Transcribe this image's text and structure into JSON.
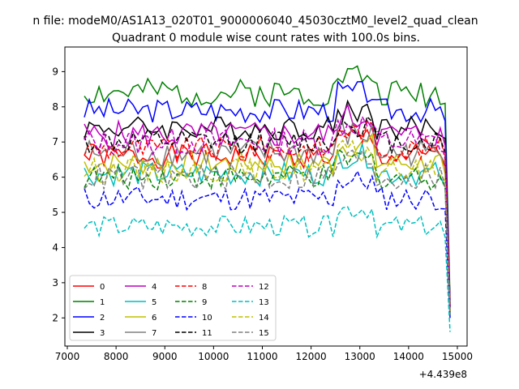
{
  "chart_data": {
    "type": "line",
    "suptitle": "n file: modeM0/AS1A13_020T01_9000006040_45030cztM0_level2_quad_clean",
    "title": "Quadrant 0 module wise count rates with 100.0s bins.",
    "xlabel": "",
    "ylabel": "",
    "x_offset_label": "+4.439e8",
    "xlim": [
      6950,
      15200
    ],
    "ylim": [
      1.2,
      9.7
    ],
    "xticks": [
      7000,
      8000,
      9000,
      10000,
      11000,
      12000,
      13000,
      14000,
      15000
    ],
    "yticks": [
      2,
      3,
      4,
      5,
      6,
      7,
      8,
      9
    ],
    "x_start": 7350,
    "x_step": 100,
    "x_end_points": [
      14750,
      14850
    ],
    "grid": false,
    "legend_position": "lower-left",
    "series": [
      {
        "name": "0",
        "color": "#ff0000",
        "dash": "solid",
        "base": 6.6,
        "amp": 0.35,
        "end": 2.2,
        "seed": 1
      },
      {
        "name": "1",
        "color": "#008000",
        "dash": "solid",
        "base": 8.4,
        "amp": 0.4,
        "end": 2.5,
        "seed": 2
      },
      {
        "name": "2",
        "color": "#0000ff",
        "dash": "solid",
        "base": 7.9,
        "amp": 0.35,
        "end": 2.3,
        "seed": 3
      },
      {
        "name": "3",
        "color": "#000000",
        "dash": "solid",
        "base": 7.4,
        "amp": 0.35,
        "end": 2.4,
        "seed": 4
      },
      {
        "name": "4",
        "color": "#bf00bf",
        "dash": "solid",
        "base": 7.2,
        "amp": 0.4,
        "end": 2.3,
        "seed": 5
      },
      {
        "name": "5",
        "color": "#00bfbf",
        "dash": "solid",
        "base": 6.1,
        "amp": 0.35,
        "end": 2.1,
        "seed": 6
      },
      {
        "name": "6",
        "color": "#bfbf00",
        "dash": "solid",
        "base": 6.4,
        "amp": 0.35,
        "end": 2.2,
        "seed": 7
      },
      {
        "name": "7",
        "color": "#808080",
        "dash": "solid",
        "base": 6.7,
        "amp": 0.4,
        "end": 2.2,
        "seed": 8
      },
      {
        "name": "8",
        "color": "#ff0000",
        "dash": "dashed",
        "base": 6.8,
        "amp": 0.35,
        "end": 2.3,
        "seed": 9
      },
      {
        "name": "9",
        "color": "#008000",
        "dash": "dashed",
        "base": 6.0,
        "amp": 0.35,
        "end": 2.1,
        "seed": 10
      },
      {
        "name": "10",
        "color": "#0000ff",
        "dash": "dashed",
        "base": 5.4,
        "amp": 0.35,
        "end": 2.0,
        "seed": 11
      },
      {
        "name": "11",
        "color": "#000000",
        "dash": "dashed",
        "base": 7.0,
        "amp": 0.35,
        "end": 2.3,
        "seed": 12
      },
      {
        "name": "12",
        "color": "#bf00bf",
        "dash": "dashed",
        "base": 7.0,
        "amp": 0.4,
        "end": 2.3,
        "seed": 13
      },
      {
        "name": "13",
        "color": "#00bfbf",
        "dash": "dashed",
        "base": 4.6,
        "amp": 0.3,
        "end": 1.6,
        "seed": 14
      },
      {
        "name": "14",
        "color": "#bfbf00",
        "dash": "dashed",
        "base": 6.2,
        "amp": 0.35,
        "end": 2.1,
        "seed": 15
      },
      {
        "name": "15",
        "color": "#808080",
        "dash": "dashed",
        "base": 6.0,
        "amp": 0.4,
        "end": 2.1,
        "seed": 16
      }
    ]
  }
}
